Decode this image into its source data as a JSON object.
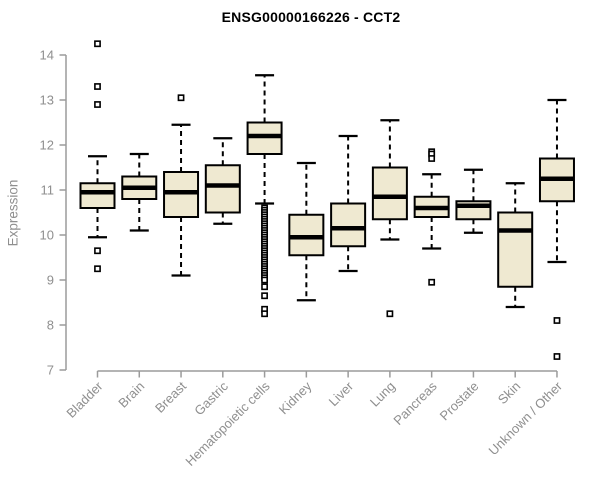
{
  "colors": {
    "background": "#ffffff",
    "box_fill": "#efe9d1",
    "box_border": "#000000",
    "median": "#000000",
    "whisker": "#000000",
    "outlier": "#000000",
    "axis": "#9b9b9b",
    "tick_label": "#8f8f8f",
    "title": "#000000"
  },
  "chart_data": {
    "type": "boxplot",
    "title": "ENSG00000166226 - CCT2",
    "ylabel": "Expression",
    "xlabel": "",
    "ylim": [
      7,
      14.3
    ],
    "yticks": [
      7,
      8,
      9,
      10,
      11,
      12,
      13,
      14
    ],
    "grid": false,
    "legend": false,
    "categories": [
      "Bladder",
      "Brain",
      "Breast",
      "Gastric",
      "Hematopoietic cells",
      "Kidney",
      "Liver",
      "Lung",
      "Pancreas",
      "Prostate",
      "Skin",
      "Unknown / Other"
    ],
    "series": [
      {
        "label": "Bladder",
        "slug": "bladder",
        "whisker_low": 9.95,
        "q1": 10.6,
        "median": 10.95,
        "q3": 11.15,
        "whisker_high": 11.75,
        "outliers": [
          14.25,
          13.3,
          12.9,
          9.65,
          9.25
        ]
      },
      {
        "label": "Brain",
        "slug": "brain",
        "whisker_low": 10.1,
        "q1": 10.8,
        "median": 11.05,
        "q3": 11.3,
        "whisker_high": 11.8,
        "outliers": []
      },
      {
        "label": "Breast",
        "slug": "breast",
        "whisker_low": 9.1,
        "q1": 10.4,
        "median": 10.95,
        "q3": 11.4,
        "whisker_high": 12.45,
        "outliers": [
          13.05
        ]
      },
      {
        "label": "Gastric",
        "slug": "gastric",
        "whisker_low": 10.25,
        "q1": 10.5,
        "median": 11.1,
        "q3": 11.55,
        "whisker_high": 12.15,
        "outliers": []
      },
      {
        "label": "Hematopoietic cells",
        "slug": "hematopoietic-cells",
        "whisker_low": 10.7,
        "q1": 11.8,
        "median": 12.2,
        "q3": 12.5,
        "whisker_high": 13.55,
        "outliers": [
          10.6,
          10.55,
          10.5,
          10.45,
          10.4,
          10.35,
          10.3,
          10.25,
          10.2,
          10.15,
          10.1,
          10.05,
          10.0,
          9.95,
          9.9,
          9.85,
          9.8,
          9.75,
          9.7,
          9.65,
          9.6,
          9.55,
          9.5,
          9.45,
          9.4,
          9.35,
          9.3,
          9.25,
          9.2,
          9.15,
          9.1,
          9.05,
          9.0,
          8.85,
          8.65,
          8.35,
          8.25
        ]
      },
      {
        "label": "Kidney",
        "slug": "kidney",
        "whisker_low": 8.55,
        "q1": 9.55,
        "median": 9.95,
        "q3": 10.45,
        "whisker_high": 11.6,
        "outliers": []
      },
      {
        "label": "Liver",
        "slug": "liver",
        "whisker_low": 9.2,
        "q1": 9.75,
        "median": 10.15,
        "q3": 10.7,
        "whisker_high": 12.2,
        "outliers": []
      },
      {
        "label": "Lung",
        "slug": "lung",
        "whisker_low": 9.9,
        "q1": 10.35,
        "median": 10.85,
        "q3": 11.5,
        "whisker_high": 12.55,
        "outliers": [
          8.25
        ]
      },
      {
        "label": "Pancreas",
        "slug": "pancreas",
        "whisker_low": 9.7,
        "q1": 10.4,
        "median": 10.6,
        "q3": 10.85,
        "whisker_high": 11.35,
        "outliers": [
          11.85,
          11.8,
          11.7,
          8.95
        ]
      },
      {
        "label": "Prostate",
        "slug": "prostate",
        "whisker_low": 10.05,
        "q1": 10.35,
        "median": 10.65,
        "q3": 10.75,
        "whisker_high": 11.45,
        "outliers": []
      },
      {
        "label": "Skin",
        "slug": "skin",
        "whisker_low": 8.4,
        "q1": 8.85,
        "median": 10.1,
        "q3": 10.5,
        "whisker_high": 11.15,
        "outliers": []
      },
      {
        "label": "Unknown / Other",
        "slug": "unknown-other",
        "whisker_low": 9.4,
        "q1": 10.75,
        "median": 11.25,
        "q3": 11.7,
        "whisker_high": 13.0,
        "outliers": [
          8.1,
          7.3
        ]
      }
    ]
  }
}
